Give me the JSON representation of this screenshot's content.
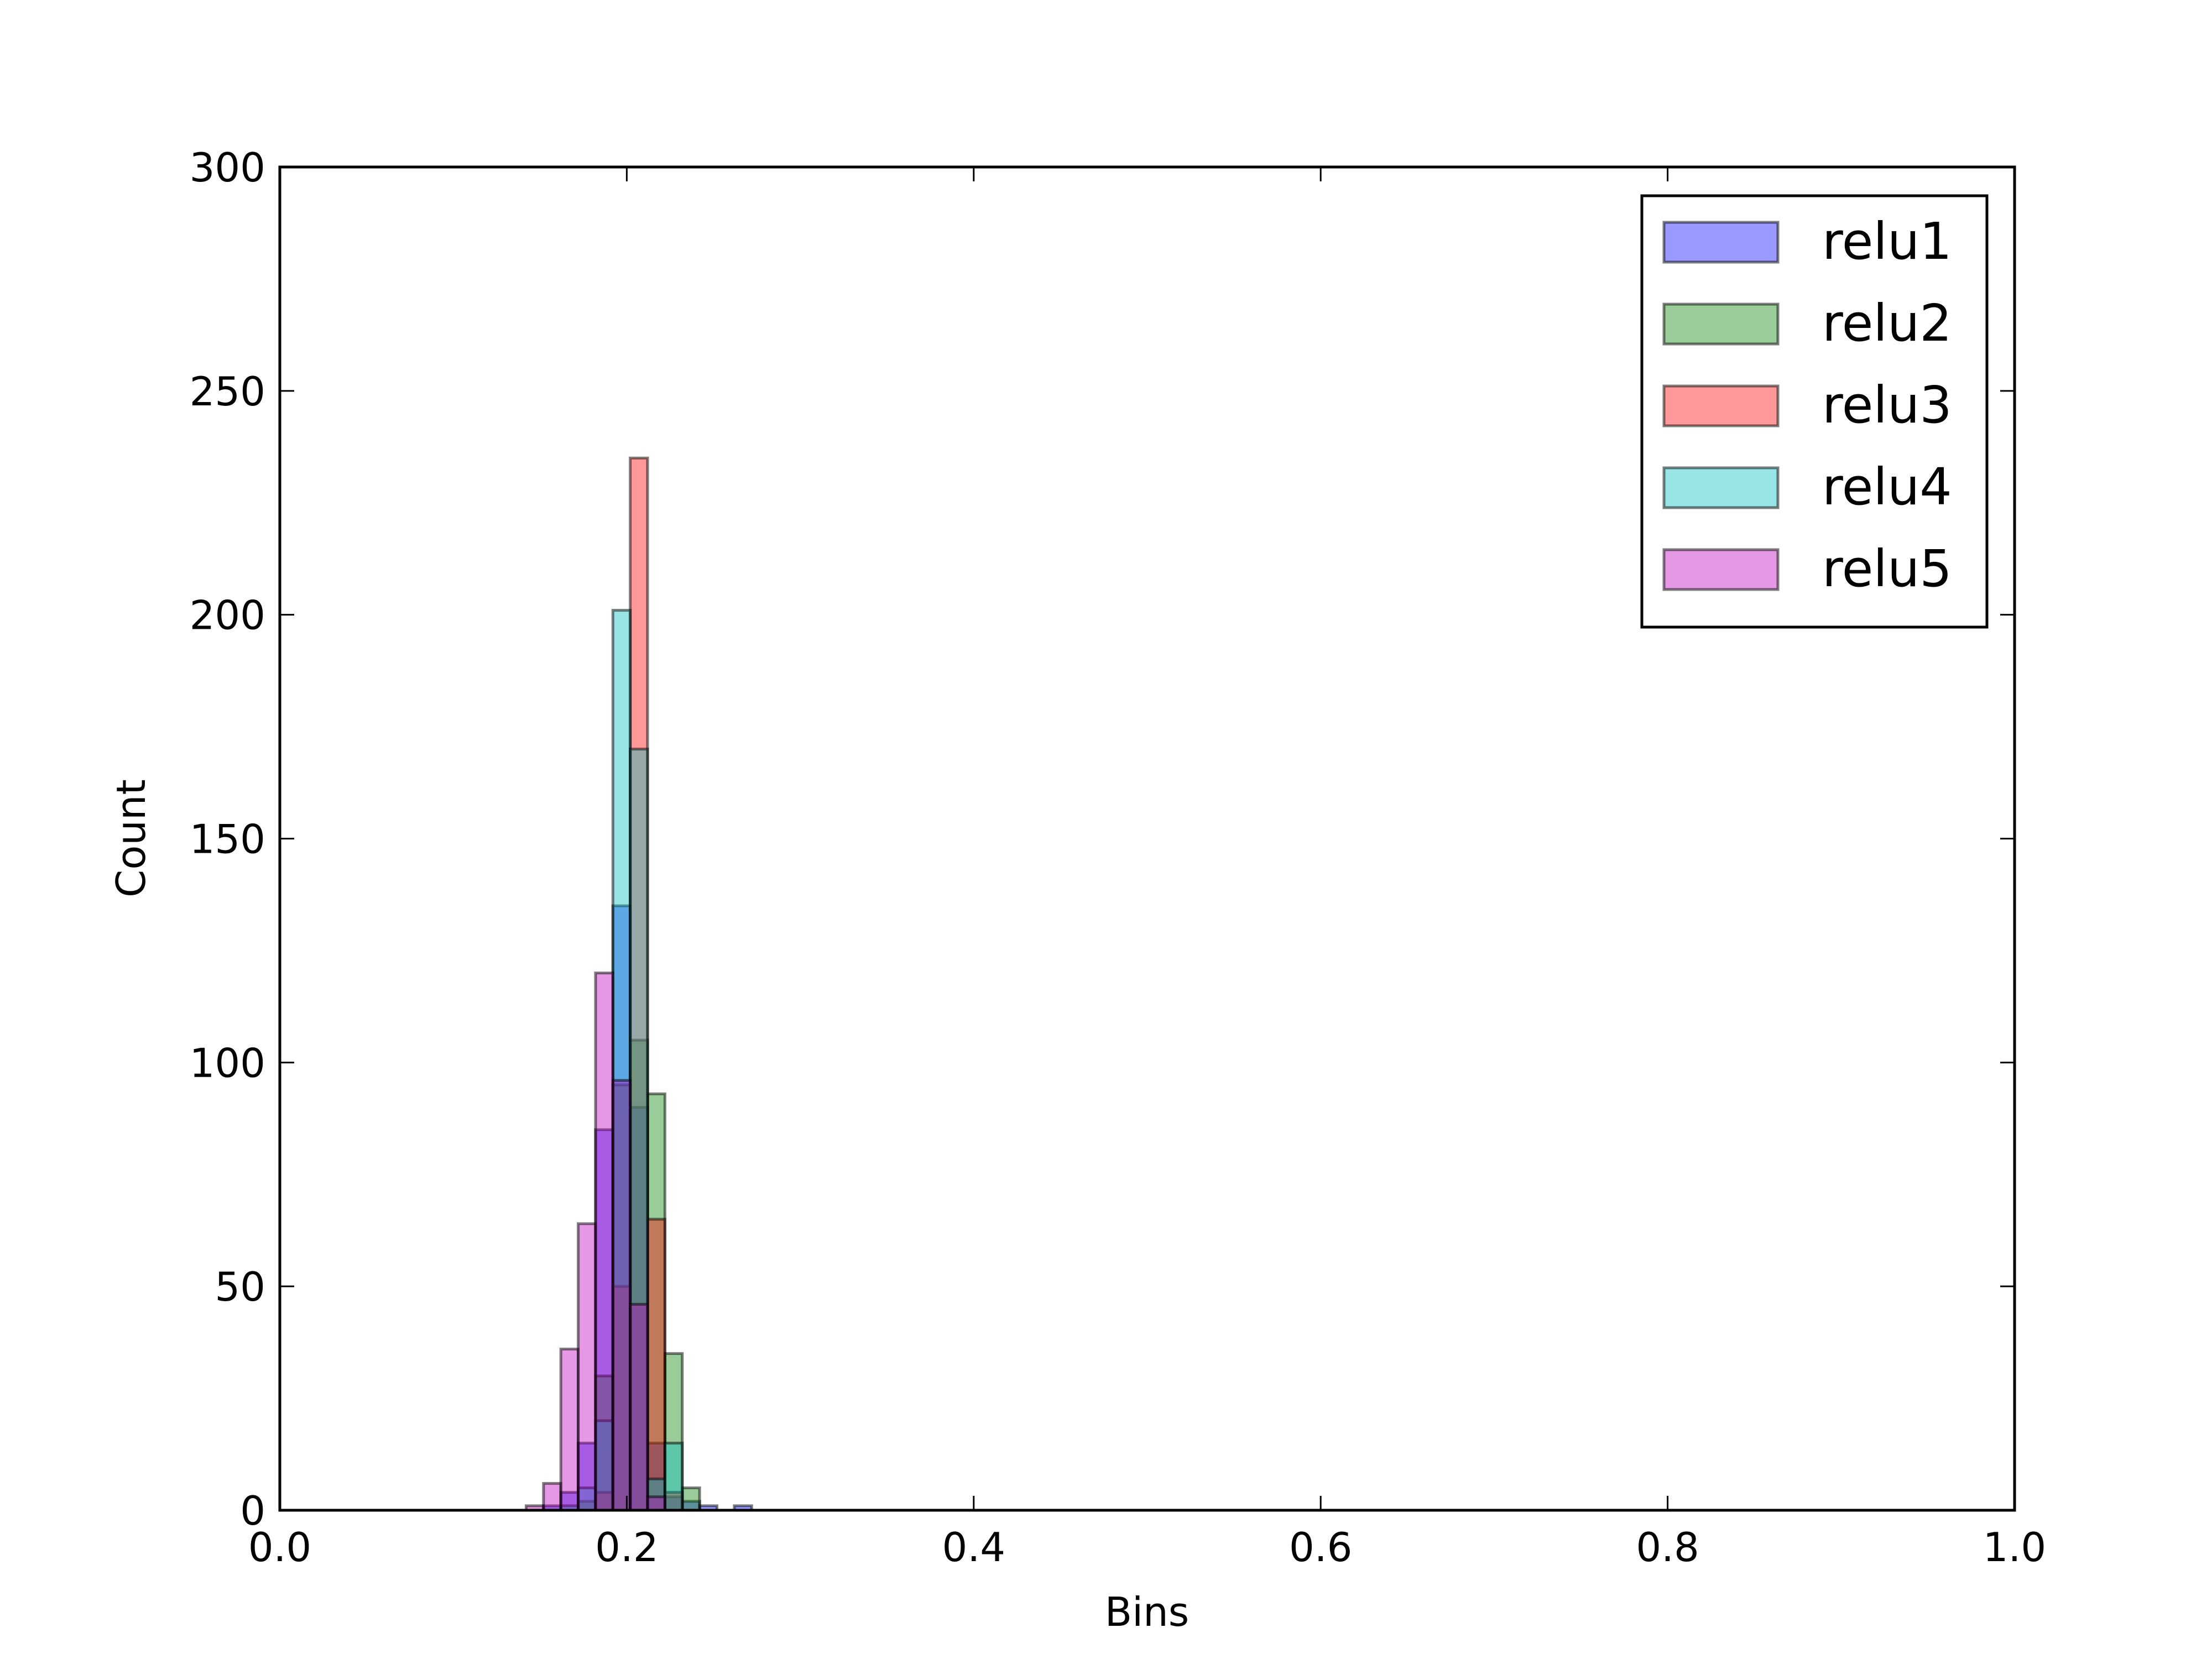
{
  "chart_data": {
    "type": "histogram",
    "xlabel": "Bins",
    "ylabel": "Count",
    "bins": [
      0.142,
      0.152,
      0.162,
      0.172,
      0.182,
      0.192,
      0.202,
      0.212,
      0.222,
      0.232,
      0.242,
      0.252,
      0.262,
      0.272
    ],
    "series": [
      {
        "name": "relu1",
        "color": "#0000ff",
        "values": [
          0,
          1,
          4,
          15,
          85,
          135,
          90,
          15,
          3,
          2,
          1,
          0,
          1
        ]
      },
      {
        "name": "relu2",
        "color": "#008000",
        "values": [
          0,
          0,
          0,
          2,
          30,
          95,
          105,
          93,
          35,
          5,
          0,
          0,
          0
        ]
      },
      {
        "name": "relu3",
        "color": "#ff0000",
        "values": [
          0,
          0,
          0,
          0,
          4,
          50,
          235,
          65,
          4,
          0,
          0,
          0,
          0
        ]
      },
      {
        "name": "relu4",
        "color": "#00bfbf",
        "values": [
          0,
          0,
          1,
          5,
          20,
          201,
          170,
          7,
          15,
          0,
          0,
          0,
          0
        ]
      },
      {
        "name": "relu5",
        "color": "#bf00bf",
        "values": [
          1,
          6,
          36,
          64,
          120,
          96,
          46,
          3,
          0,
          0,
          0,
          0,
          0
        ]
      }
    ],
    "alpha": 0.4,
    "xlim": [
      0,
      1
    ],
    "ylim": [
      0,
      300
    ],
    "xticks": [
      {
        "value": 0,
        "label": "0.0"
      },
      0.2,
      0.4,
      0.6,
      0.8,
      {
        "value": 1,
        "label": "1.0"
      }
    ],
    "yticks": [
      0,
      50,
      100,
      150,
      200,
      250,
      300
    ],
    "legend": "upper right"
  }
}
